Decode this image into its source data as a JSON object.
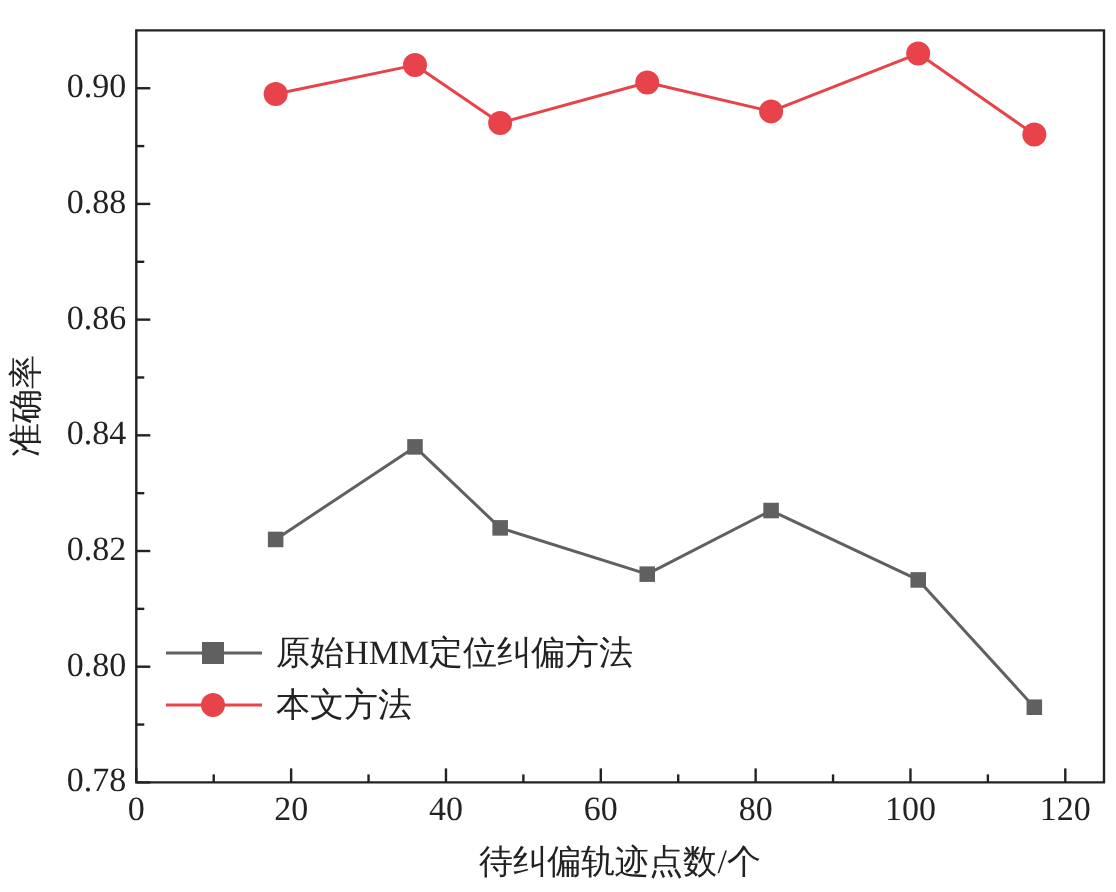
{
  "chart_data": {
    "type": "line",
    "xlabel": "待纠偏轨迹点数/个",
    "ylabel": "准确率",
    "x": [
      18,
      36,
      47,
      66,
      82,
      101,
      116
    ],
    "series": [
      {
        "name": "原始HMM定位纠偏方法",
        "color": "#606060",
        "marker": "square",
        "values": [
          0.822,
          0.838,
          0.824,
          0.816,
          0.827,
          0.815,
          0.793
        ]
      },
      {
        "name": "本文方法",
        "color": "#e8424a",
        "marker": "circle",
        "values": [
          0.899,
          0.904,
          0.894,
          0.901,
          0.896,
          0.906,
          0.892
        ]
      }
    ],
    "xlim": [
      0,
      125
    ],
    "xticks": [
      0,
      {
        "value": 10,
        "label": null
      },
      20,
      {
        "value": 30,
        "label": null
      },
      40,
      {
        "value": 50,
        "label": null
      },
      60,
      {
        "value": 70,
        "label": null
      },
      80,
      {
        "value": 90,
        "label": null
      },
      100,
      {
        "value": 110,
        "label": null
      },
      120
    ],
    "ylim": [
      0.78,
      0.91
    ],
    "yticks": [
      {
        "value": 0.78,
        "label": "0.78"
      },
      {
        "value": 0.79,
        "label": null
      },
      {
        "value": 0.8,
        "label": "0.80"
      },
      {
        "value": 0.81,
        "label": null
      },
      {
        "value": 0.82,
        "label": "0.82"
      },
      {
        "value": 0.83,
        "label": null
      },
      {
        "value": 0.84,
        "label": "0.84"
      },
      {
        "value": 0.85,
        "label": null
      },
      {
        "value": 0.86,
        "label": "0.86"
      },
      {
        "value": 0.87,
        "label": null
      },
      {
        "value": 0.88,
        "label": "0.88"
      },
      {
        "value": 0.89,
        "label": null
      },
      {
        "value": 0.9,
        "label": "0.90"
      }
    ],
    "grid": false,
    "legend": "bottom left",
    "line_style": "solid"
  }
}
